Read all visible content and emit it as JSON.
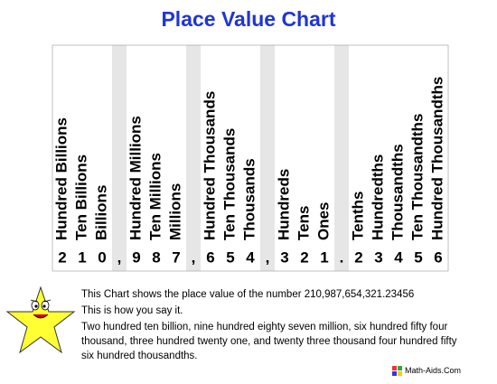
{
  "title": "Place Value Chart",
  "groups": [
    {
      "places": [
        {
          "label": "Hundred Billions",
          "digit": "2"
        },
        {
          "label": "Ten Billions",
          "digit": "1"
        },
        {
          "label": "Billions",
          "digit": "0"
        }
      ],
      "separator": ","
    },
    {
      "places": [
        {
          "label": "Hundred Millions",
          "digit": "9"
        },
        {
          "label": "Ten Millions",
          "digit": "8"
        },
        {
          "label": "Millions",
          "digit": "7"
        }
      ],
      "separator": ","
    },
    {
      "places": [
        {
          "label": "Hundred Thousands",
          "digit": "6"
        },
        {
          "label": "Ten Thousands",
          "digit": "5"
        },
        {
          "label": "Thousands",
          "digit": "4"
        }
      ],
      "separator": ","
    },
    {
      "places": [
        {
          "label": "Hundreds",
          "digit": "3"
        },
        {
          "label": "Tens",
          "digit": "2"
        },
        {
          "label": "Ones",
          "digit": "1"
        }
      ],
      "separator": "."
    },
    {
      "places": [
        {
          "label": "Tenths",
          "digit": "2"
        },
        {
          "label": "Hundredths",
          "digit": "3"
        },
        {
          "label": "Thousandths",
          "digit": "4"
        },
        {
          "label": "Ten Thousandths",
          "digit": "5"
        },
        {
          "label": "Hundred Thousandths",
          "digit": "6"
        }
      ]
    }
  ],
  "caption": "This Chart shows the place value of the number 210,987,654,321.23456",
  "say_intro": "This is how you say it.",
  "words": "Two hundred ten billion, nine hundred eighty seven million, six hundred fifty four thousand, three hundred twenty one, and twenty three thousand four hundred fifty six hundred thousandths.",
  "logo": "Math-Aids.Com"
}
